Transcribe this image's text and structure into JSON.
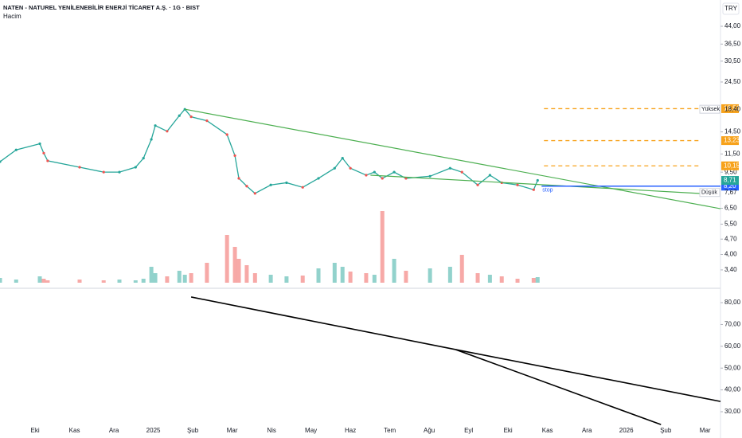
{
  "header": {
    "title": "NATEN - NATUREL YENİLENEBİLİR ENERJİ TİCARET A.Ş. · 1G · BIST",
    "indicator": "Hacim",
    "currency": "TRY"
  },
  "chart_data": [
    {
      "type": "line",
      "log": true,
      "color": "#26a69a",
      "xlim": [
        -0.89,
        17.39
      ],
      "xticks": [
        {
          "value": 0,
          "label": "Eki"
        },
        {
          "value": 1,
          "label": "Kas"
        },
        {
          "value": 2,
          "label": "Ara"
        },
        {
          "value": 3,
          "label": "2025"
        },
        {
          "value": 4,
          "label": "Şub"
        },
        {
          "value": 5,
          "label": "Mar"
        },
        {
          "value": 6,
          "label": "Nis"
        },
        {
          "value": 7,
          "label": "May"
        },
        {
          "value": 8,
          "label": "Haz"
        },
        {
          "value": 9,
          "label": "Tem"
        },
        {
          "value": 10,
          "label": "Ağu"
        },
        {
          "value": 11,
          "label": "Eyl"
        },
        {
          "value": 12,
          "label": "Eki"
        },
        {
          "value": 13,
          "label": "Kas"
        },
        {
          "value": 14,
          "label": "Ara"
        },
        {
          "value": 15,
          "label": "2026"
        },
        {
          "value": 16,
          "label": "Şub"
        },
        {
          "value": 17,
          "label": "Mar"
        }
      ],
      "ylim": [
        2.85,
        58
      ],
      "yticks": [
        {
          "value": 44,
          "label": "44,00"
        },
        {
          "value": 36.5,
          "label": "36,50"
        },
        {
          "value": 30.5,
          "label": "30,50"
        },
        {
          "value": 24.5,
          "label": "24,50"
        },
        {
          "value": 14.5,
          "label": "14,50"
        },
        {
          "value": 11.5,
          "label": "11,50"
        },
        {
          "value": 9.5,
          "label": "9,50"
        },
        {
          "value": 6.5,
          "label": "6,50"
        },
        {
          "value": 5.5,
          "label": "5,50"
        },
        {
          "value": 4.7,
          "label": "4,70"
        },
        {
          "value": 4,
          "label": "4,00"
        },
        {
          "value": 3.4,
          "label": "3,40"
        }
      ],
      "x": [
        -0.89,
        -0.48,
        0.12,
        0.22,
        0.32,
        1.13,
        1.74,
        2.14,
        2.55,
        2.75,
        2.95,
        3.05,
        3.35,
        3.66,
        3.8,
        3.96,
        4.36,
        4.87,
        5.07,
        5.17,
        5.37,
        5.58,
        5.98,
        6.38,
        6.79,
        7.19,
        7.6,
        7.8,
        8.0,
        8.4,
        8.61,
        8.81,
        9.11,
        9.41,
        10.02,
        10.53,
        10.83,
        11.23,
        11.54,
        11.84,
        12.24,
        12.65,
        12.75
      ],
      "values": [
        10.6,
        12.0,
        12.8,
        11.6,
        10.7,
        10.0,
        9.5,
        9.5,
        10.0,
        11.0,
        13.4,
        15.5,
        14.6,
        17.2,
        18.4,
        17.0,
        16.3,
        14.1,
        11.3,
        8.9,
        8.2,
        7.6,
        8.3,
        8.5,
        8.1,
        8.9,
        9.9,
        11.0,
        9.9,
        9.2,
        9.5,
        8.9,
        9.5,
        8.9,
        9.1,
        9.9,
        9.5,
        8.3,
        9.2,
        8.5,
        8.3,
        7.9,
        8.71
      ],
      "volume": [
        6,
        4,
        8,
        5,
        3,
        4,
        3,
        4,
        3,
        5,
        20,
        12,
        8,
        15,
        10,
        12,
        25,
        60,
        45,
        30,
        22,
        12,
        10,
        8,
        9,
        18,
        25,
        20,
        14,
        12,
        10,
        90,
        30,
        15,
        18,
        20,
        35,
        12,
        10,
        8,
        5,
        6,
        7
      ],
      "levels": [
        {
          "value": 18.51,
          "label": "18,51"
        },
        {
          "value": 13.23,
          "label": "13,23"
        },
        {
          "value": 10.15,
          "label": "10,15"
        }
      ],
      "level_color": "#f7a21b",
      "last": {
        "value": 8.71,
        "label": "8,71"
      },
      "stop": {
        "value": 8.2,
        "label": "8,20",
        "name": "stop",
        "color": "#2962ff"
      },
      "high": {
        "name": "Yüksek",
        "value": 18.4,
        "label": "18,40"
      },
      "low": {
        "name": "Düşük",
        "value": 7.67,
        "label": "7,67"
      },
      "trendlines": [
        {
          "x": [
            3.8,
            17.39
          ],
          "values": [
            18.4,
            6.47
          ]
        },
        {
          "x": [
            8.51,
            16.89
          ],
          "values": [
            9.2,
            7.59
          ]
        }
      ],
      "trend_color": "#4caf50"
    },
    {
      "type": "line",
      "color": "#000000",
      "xlim": [
        -0.89,
        17.39
      ],
      "ylim": [
        21.6,
        84.4
      ],
      "yticks": [
        {
          "value": 80,
          "label": "80,00"
        },
        {
          "value": 70,
          "label": "70,00"
        },
        {
          "value": 60,
          "label": "60,00"
        },
        {
          "value": 50,
          "label": "50,00"
        },
        {
          "value": 40,
          "label": "40,00"
        },
        {
          "value": 30,
          "label": "30,00"
        }
      ],
      "lines": [
        {
          "x": [
            3.96,
            10.67
          ],
          "values": [
            82.6,
            58.5
          ]
        },
        {
          "x": [
            10.67,
            17.39
          ],
          "values": [
            58.5,
            34.7
          ]
        },
        {
          "x": [
            10.67,
            15.88
          ],
          "values": [
            58.5,
            24.1
          ]
        }
      ]
    }
  ]
}
